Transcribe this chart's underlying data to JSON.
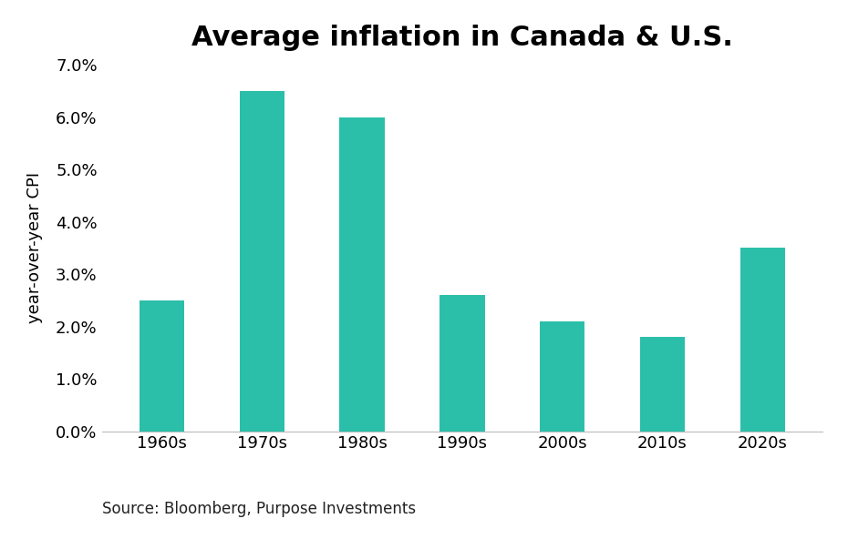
{
  "title": "Average inflation in Canada & U.S.",
  "categories": [
    "1960s",
    "1970s",
    "1980s",
    "1990s",
    "2000s",
    "2010s",
    "2020s"
  ],
  "values": [
    0.025,
    0.065,
    0.06,
    0.026,
    0.021,
    0.018,
    0.035
  ],
  "bar_color": "#2bbfaa",
  "ylabel": "year-over-year CPI",
  "ylim": [
    0,
    0.07
  ],
  "yticks": [
    0.0,
    0.01,
    0.02,
    0.03,
    0.04,
    0.05,
    0.06,
    0.07
  ],
  "source_text": "Source: Bloomberg, Purpose Investments",
  "title_fontsize": 22,
  "label_fontsize": 13,
  "tick_fontsize": 13,
  "source_fontsize": 12,
  "background_color": "#ffffff"
}
